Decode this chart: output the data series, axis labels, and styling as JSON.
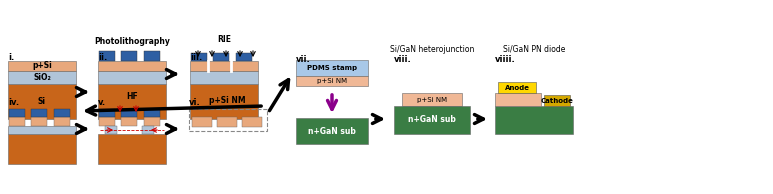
{
  "colors": {
    "si_orange": "#C8651A",
    "p_si_light": "#E8A87C",
    "sio2_blue_gray": "#B0C4D8",
    "photoresist_blue": "#2E5FA3",
    "gan_green": "#3A7D44",
    "pdms_light_blue": "#A8C8E8",
    "nm_peach": "#F0B896",
    "anode_yellow": "#FFD700",
    "cathode_yellow": "#D4A800",
    "arrow_red": "#CC0000",
    "dashed_border": "#888888"
  },
  "labels": {
    "i": "i.",
    "ii": "ii.",
    "iii": "iii.",
    "iv": "iv.",
    "v": "v.",
    "vi": "vi.",
    "vii": "vii.",
    "viii": "viii.",
    "viiii": "viiii.",
    "photolithography": "Photolithography",
    "rie": "RIE",
    "hf": "HF",
    "p_si_nm_vi": "p+Si NM",
    "pdms_stamp": "PDMS stamp",
    "p_si_nm": "p+Si NM",
    "n_gan_sub": "n+GaN sub",
    "si_gan_hetero": "Si/GaN heterojunction",
    "si_gan_diode": "Si/GaN PN diode",
    "p_si": "p+Si",
    "sio2": "SiO₂",
    "si": "Si",
    "anode": "Anode",
    "cathode": "Cathode"
  }
}
